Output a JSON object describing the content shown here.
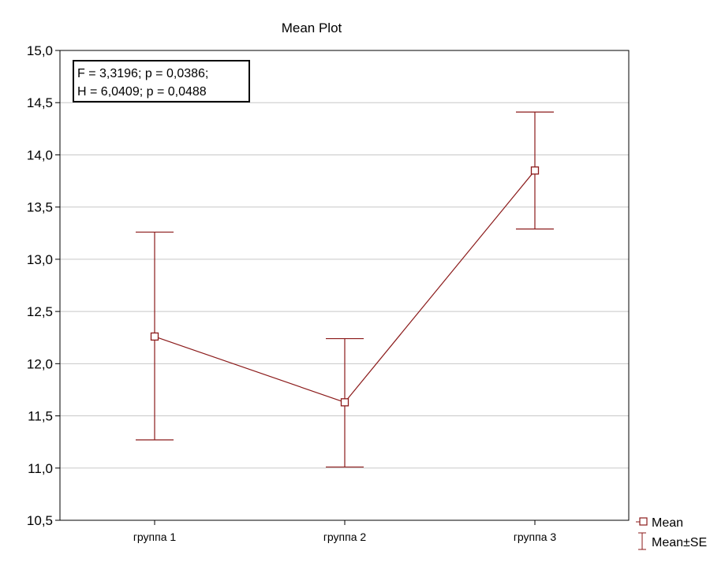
{
  "chart_data": {
    "type": "line",
    "title": "Mean Plot",
    "xlabel": "",
    "ylabel": "",
    "categories": [
      "группа 1",
      "группа 2",
      "группа 3"
    ],
    "series": [
      {
        "name": "Mean",
        "values": [
          12.26,
          11.63,
          13.85
        ],
        "se_lower": [
          11.27,
          11.01,
          13.29
        ],
        "se_upper": [
          13.26,
          12.24,
          14.41
        ]
      }
    ],
    "ylim": [
      10.5,
      15.0
    ],
    "yticks": [
      10.5,
      11.0,
      11.5,
      12.0,
      12.5,
      13.0,
      13.5,
      14.0,
      14.5,
      15.0
    ],
    "ytick_labels": [
      "10,5",
      "11,0",
      "11,5",
      "12,0",
      "12,5",
      "13,0",
      "13,5",
      "14,0",
      "14,5",
      "15,0"
    ],
    "grid": true,
    "annotation": [
      "F = 3,3196; p = 0,0386;",
      "H = 6,0409; p = 0,0488"
    ],
    "legend": [
      {
        "label": "Mean",
        "marker": "square"
      },
      {
        "label": "Mean±SE",
        "marker": "errorbar"
      }
    ],
    "legend_position": "bottom-right outside",
    "colors": {
      "series": "#8b1a1a",
      "grid": "#c8c8c8",
      "axis": "#000000"
    }
  }
}
